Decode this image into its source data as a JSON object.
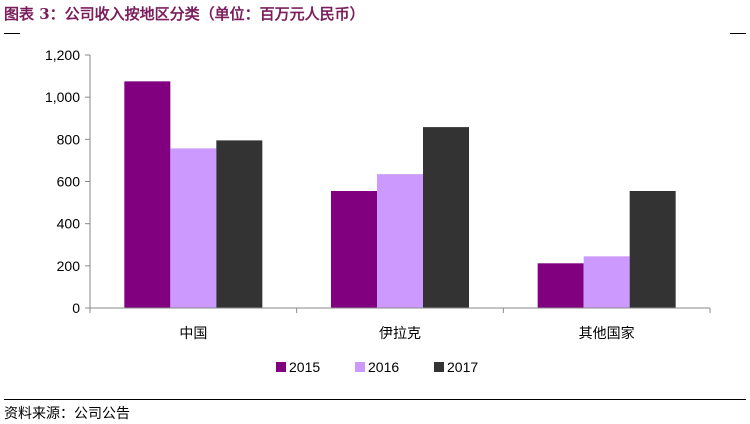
{
  "title": "图表 3：公司收入按地区分类（单位：百万元人民币）",
  "source": "资料来源：公司公告",
  "chart_data": {
    "type": "bar",
    "categories": [
      "中国",
      "伊拉克",
      "其他国家"
    ],
    "series": [
      {
        "name": "2015",
        "color": "#800080",
        "values": [
          1075,
          555,
          212
        ]
      },
      {
        "name": "2016",
        "color": "#cc99ff",
        "values": [
          757,
          635,
          245
        ]
      },
      {
        "name": "2017",
        "color": "#333333",
        "values": [
          795,
          858,
          555
        ]
      }
    ],
    "y_ticks": [
      "0",
      "200",
      "400",
      "600",
      "800",
      "1,000",
      "1,200"
    ],
    "ylim": [
      0,
      1200
    ],
    "grid": false,
    "legend_position": "bottom"
  }
}
